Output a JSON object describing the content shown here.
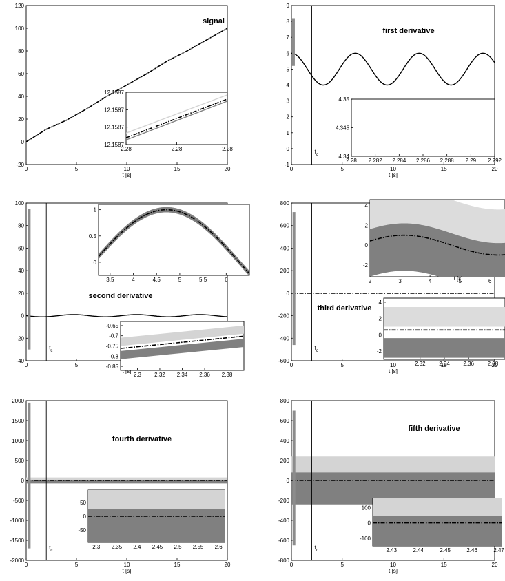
{
  "chart_data": [
    {
      "type": "line",
      "title": "signal",
      "xlabel": "t [s]",
      "xlim": [
        0,
        20
      ],
      "ylim": [
        -20,
        120
      ],
      "xticks": [
        "0",
        "5",
        "10",
        "15",
        "20"
      ],
      "yticks": [
        "-20",
        "0",
        "20",
        "40",
        "60",
        "80",
        "100",
        "120"
      ],
      "series": [
        {
          "color": "#d4d4d4",
          "style": "solid",
          "x": [
            0,
            2,
            4,
            6,
            8,
            10,
            12,
            14,
            16,
            18,
            20
          ],
          "y": [
            0,
            11,
            19,
            29,
            40,
            50,
            60,
            71,
            80,
            90,
            100
          ]
        },
        {
          "color": "#808080",
          "style": "solid",
          "x": [
            0,
            2,
            4,
            6,
            8,
            10,
            12,
            14,
            16,
            18,
            20
          ],
          "y": [
            0,
            11,
            19,
            29,
            40,
            50,
            60,
            71,
            80,
            90,
            100
          ]
        },
        {
          "color": "#000000",
          "style": "dashdot",
          "x": [
            0,
            2,
            4,
            6,
            8,
            10,
            12,
            14,
            16,
            18,
            20
          ],
          "y": [
            0,
            11,
            19,
            29,
            40,
            50,
            60,
            71,
            80,
            90,
            100
          ]
        }
      ],
      "inset": {
        "xticks": [
          "2.28",
          "2.28",
          "2.28"
        ],
        "yticks": [
          "12.1587",
          "12.1587",
          "12.1587",
          "12.1587"
        ],
        "series": [
          {
            "color": "#d4d4d4",
            "x": [
              0,
              1
            ],
            "y": [
              0.22,
              0.95
            ]
          },
          {
            "color": "#808080",
            "x": [
              0,
              1
            ],
            "y": [
              0.09,
              0.83
            ]
          },
          {
            "color": "#000000",
            "style": "dashdot",
            "x": [
              0,
              1
            ],
            "y": [
              0.13,
              0.87
            ]
          }
        ]
      }
    },
    {
      "type": "line",
      "title": "first derivative",
      "xlabel": "t [s]",
      "xlim": [
        0,
        20
      ],
      "ylim": [
        -1,
        9
      ],
      "xticks": [
        "0",
        "5",
        "10",
        "15",
        "20"
      ],
      "yticks": [
        "-1",
        "0",
        "1",
        "2",
        "3",
        "4",
        "5",
        "6",
        "7",
        "8",
        "9"
      ],
      "marker_label": "t_c",
      "marker_x": 2,
      "transient": {
        "x": 0.2,
        "ymin": 5.2,
        "ymax": 8.2
      },
      "series": [
        {
          "color": "#000000",
          "style": "solid",
          "function": "5 + cos(t)"
        }
      ],
      "inset": {
        "xticks": [
          "2.28",
          "2.282",
          "2.284",
          "2.286",
          "2.288",
          "2.29",
          "2.292"
        ],
        "yticks": [
          "4.34",
          "4.345",
          "4.35"
        ],
        "series": [
          {
            "color": "#d4d4d4",
            "x": [
              2.28,
              2.2925
            ],
            "y": [
              4.349,
              4.3395
            ]
          },
          {
            "color": "#808080",
            "x": [
              2.28,
              2.2925
            ],
            "y": [
              4.3478,
              4.3378
            ]
          },
          {
            "color": "#000000",
            "style": "dashdot",
            "x": [
              2.28,
              2.2925
            ],
            "y": [
              4.3485,
              4.3385
            ]
          }
        ]
      }
    },
    {
      "type": "line",
      "title": "second derivative",
      "xlabel": "t [s]",
      "xlim": [
        0,
        20
      ],
      "ylim": [
        -40,
        100
      ],
      "xticks": [
        "0",
        "5"
      ],
      "yticks": [
        "-40",
        "-20",
        "0",
        "20",
        "40",
        "60",
        "80",
        "100"
      ],
      "marker_label": "t_c",
      "marker_x": 2,
      "transient": {
        "x": 0.3,
        "ymin": -30,
        "ymax": 95
      },
      "series": [
        {
          "color": "#000000",
          "style": "solid",
          "function": "-sin(t)"
        }
      ],
      "inset_top": {
        "xticks": [
          "3.5",
          "4",
          "4.5",
          "5",
          "5.5",
          "6"
        ],
        "yticks": [
          "0",
          "0.5",
          "1"
        ],
        "xlim": [
          3.25,
          6.5
        ],
        "ylim": [
          -0.25,
          1.1
        ],
        "series": [
          {
            "color": "#d4d4d4",
            "band": 0.05,
            "function": "-sin(t)"
          },
          {
            "color": "#808080",
            "band": 0.05,
            "function": "-sin(t)"
          },
          {
            "color": "#000000",
            "style": "dashdot",
            "function": "-sin(t)"
          }
        ]
      },
      "inset_bottom": {
        "xticks": [
          "2.3",
          "2.32",
          "2.34",
          "2.36",
          "2.38"
        ],
        "yticks": [
          "-0.85",
          "-0.8",
          "-0.75",
          "-0.7",
          "-0.65"
        ],
        "xlim": [
          2.285,
          2.395
        ],
        "ylim": [
          -0.87,
          -0.63
        ],
        "series": [
          {
            "color": "#d4d4d4",
            "band": 0.02,
            "x": [
              2.285,
              2.395
            ],
            "y": [
              -0.73,
              -0.67
            ]
          },
          {
            "color": "#808080",
            "band": 0.02,
            "x": [
              2.285,
              2.395
            ],
            "y": [
              -0.795,
              -0.735
            ]
          },
          {
            "color": "#000000",
            "style": "dashdot",
            "x": [
              2.285,
              2.395
            ],
            "y": [
              -0.762,
              -0.702
            ]
          }
        ]
      }
    },
    {
      "type": "line",
      "title": "third derivative",
      "xlabel": "t [s]",
      "xlim": [
        0,
        20
      ],
      "ylim": [
        -600,
        800
      ],
      "xticks": [
        "0",
        "5",
        "10",
        "15",
        "20"
      ],
      "yticks": [
        "-600",
        "-400",
        "-200",
        "0",
        "200",
        "400",
        "600",
        "800"
      ],
      "marker_label": "t_c",
      "marker_x": 2,
      "transient": {
        "x": 0.25,
        "ymin": -460,
        "ymax": 720
      },
      "series": [
        {
          "color": "#000000",
          "style": "dashdot",
          "function": "0"
        }
      ],
      "inset_top": {
        "xticks": [
          "2",
          "3",
          "4",
          "5",
          "6"
        ],
        "yticks": [
          "-2",
          "0",
          "2",
          "4"
        ],
        "xlim": [
          2,
          6.5
        ],
        "ylim": [
          -3.2,
          4.6
        ],
        "x_caption": "t [s]",
        "series": [
          {
            "color": "#dcdcdc",
            "band": 2.4,
            "function": "-cos(t)+2.2"
          },
          {
            "color": "#808080",
            "band": 2.4,
            "function": "-cos(t)-1.2"
          },
          {
            "color": "#000000",
            "style": "dashdot",
            "function": "-cos(t)"
          }
        ]
      },
      "inset_bottom": {
        "xticks": [
          "2.32",
          "2.34",
          "2.36",
          "2.38"
        ],
        "yticks": [
          "-2",
          "0",
          "2",
          "4"
        ],
        "xlim": [
          2.29,
          2.39
        ],
        "ylim": [
          -3,
          4.5
        ],
        "series": [
          {
            "color": "#dcdcdc",
            "band": 1.2,
            "x": [
              2.29,
              2.39
            ],
            "y": [
              2.2,
              2.2
            ]
          },
          {
            "color": "#808080",
            "band": 1.2,
            "x": [
              2.29,
              2.39
            ],
            "y": [
              -1.6,
              -1.6
            ]
          },
          {
            "color": "#000000",
            "style": "dashdot",
            "x": [
              2.29,
              2.39
            ],
            "y": [
              0.6,
              0.6
            ]
          }
        ]
      }
    },
    {
      "type": "line",
      "title": "fourth derivative",
      "xlabel": "t [s]",
      "xlim": [
        0,
        20
      ],
      "ylim": [
        -2000,
        2000
      ],
      "xticks": [
        "0",
        "5",
        "10",
        "15",
        "20"
      ],
      "yticks": [
        "-2000",
        "-1500",
        "-1000",
        "-500",
        "0",
        "500",
        "1000",
        "1500",
        "2000"
      ],
      "marker_label": "t_c",
      "marker_x": 2,
      "transient": {
        "x": 0.3,
        "ymin": -1700,
        "ymax": 1950
      },
      "series": [
        {
          "color": "#d4d4d4",
          "band": 45,
          "x": [
            0,
            20
          ],
          "y": [
            30,
            30
          ]
        },
        {
          "color": "#808080",
          "band": 45,
          "x": [
            0,
            20
          ],
          "y": [
            -30,
            -30
          ]
        },
        {
          "color": "#000000",
          "style": "dashdot",
          "x": [
            0,
            20
          ],
          "y": [
            0,
            0
          ]
        }
      ],
      "inset": {
        "xticks": [
          "2.3",
          "2.35",
          "2.4",
          "2.45",
          "2.5",
          "2.55",
          "2.6"
        ],
        "yticks": [
          "-50",
          "0",
          "50"
        ],
        "xlim": [
          2.28,
          2.615
        ],
        "ylim": [
          -95,
          95
        ],
        "series": [
          {
            "color": "#d4d4d4",
            "band": 70,
            "x": [
              2.28,
              2.615
            ],
            "y": [
              40,
              40
            ]
          },
          {
            "color": "#808080",
            "band": 70,
            "x": [
              2.28,
              2.615
            ],
            "y": [
              -45,
              -45
            ]
          },
          {
            "color": "#000000",
            "style": "dashdot",
            "x": [
              2.28,
              2.615
            ],
            "y": [
              0,
              0
            ]
          }
        ]
      }
    },
    {
      "type": "line",
      "title": "fifth derivative",
      "xlabel": "t [s]",
      "xlim": [
        0,
        20
      ],
      "ylim": [
        -800,
        800
      ],
      "xticks": [
        "0",
        "5",
        "10",
        "15",
        "20"
      ],
      "yticks": [
        "-800",
        "-600",
        "-400",
        "-200",
        "0",
        "200",
        "400",
        "600",
        "800"
      ],
      "marker_label": "t_c",
      "marker_x": 2,
      "transient": {
        "x": 0.25,
        "ymin": -650,
        "ymax": 700
      },
      "series": [
        {
          "color": "#d4d4d4",
          "band": 160,
          "x": [
            0,
            20
          ],
          "y": [
            80,
            80
          ]
        },
        {
          "color": "#808080",
          "band": 160,
          "x": [
            0,
            20
          ],
          "y": [
            -80,
            -80
          ]
        },
        {
          "color": "#000000",
          "style": "dashdot",
          "x": [
            0,
            20
          ],
          "y": [
            0,
            0
          ]
        }
      ],
      "inset": {
        "xticks": [
          "2.43",
          "2.44",
          "2.45",
          "2.46",
          "2.47"
        ],
        "yticks": [
          "-100",
          "0",
          "100"
        ],
        "xlim": [
          2.423,
          2.471
        ],
        "ylim": [
          -150,
          160
        ],
        "series": [
          {
            "color": "#d4d4d4",
            "band": 110,
            "x": [
              2.423,
              2.471
            ],
            "y": [
              65,
              65
            ]
          },
          {
            "color": "#808080",
            "band": 110,
            "x": [
              2.423,
              2.471
            ],
            "y": [
              -65,
              -65
            ]
          },
          {
            "color": "#000000",
            "style": "dashdot",
            "x": [
              2.423,
              2.471
            ],
            "y": [
              0,
              0
            ]
          }
        ]
      }
    }
  ]
}
